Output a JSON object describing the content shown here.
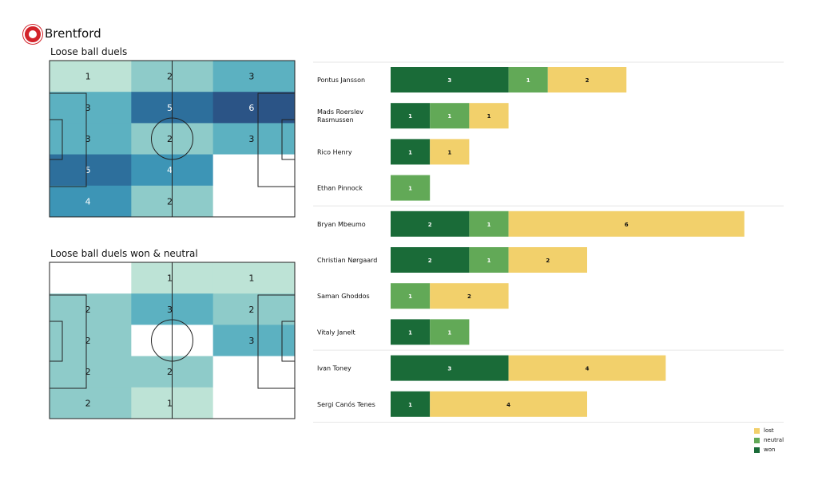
{
  "header": {
    "team": "Brentford"
  },
  "pitches": [
    {
      "title": "Loose ball duels",
      "grid": [
        [
          1,
          2,
          3
        ],
        [
          3,
          5,
          6
        ],
        [
          3,
          2,
          3
        ],
        [
          5,
          4,
          null
        ],
        [
          4,
          2,
          null
        ]
      ]
    },
    {
      "title": "Loose ball duels won & neutral",
      "grid": [
        [
          null,
          1,
          1
        ],
        [
          2,
          3,
          2
        ],
        [
          2,
          null,
          3
        ],
        [
          2,
          2,
          null
        ],
        [
          2,
          1,
          null
        ]
      ]
    }
  ],
  "colors": {
    "won": "#1a6b38",
    "neutral": "#62a957",
    "lost": "#f2d06b",
    "heat": [
      "#ffffff",
      "#bde3d6",
      "#8ecbc9",
      "#5cb1c1",
      "#3d95b6",
      "#2d6f9c",
      "#2b5486"
    ]
  },
  "chart_data": {
    "type": "bar",
    "stacked": true,
    "orientation": "horizontal",
    "categories": [
      "Pontus Jansson",
      "Mads Roerslev Rasmussen",
      "Rico Henry",
      "Ethan Pinnock",
      "Bryan Mbeumo",
      "Christian Nørgaard",
      "Saman Ghoddos",
      "Vitaly Janelt",
      "Ivan Toney",
      "Sergi Canós Tenes"
    ],
    "groups_after": [
      3,
      7
    ],
    "series": [
      {
        "name": "won",
        "values": [
          3,
          1,
          1,
          0,
          2,
          2,
          0,
          1,
          3,
          1
        ]
      },
      {
        "name": "neutral",
        "values": [
          1,
          1,
          0,
          1,
          1,
          1,
          1,
          1,
          0,
          0
        ]
      },
      {
        "name": "lost",
        "values": [
          2,
          1,
          1,
          0,
          6,
          2,
          2,
          0,
          4,
          4
        ]
      }
    ],
    "legend_position": "bottom-right",
    "legend_order": [
      "lost",
      "neutral",
      "won"
    ]
  }
}
